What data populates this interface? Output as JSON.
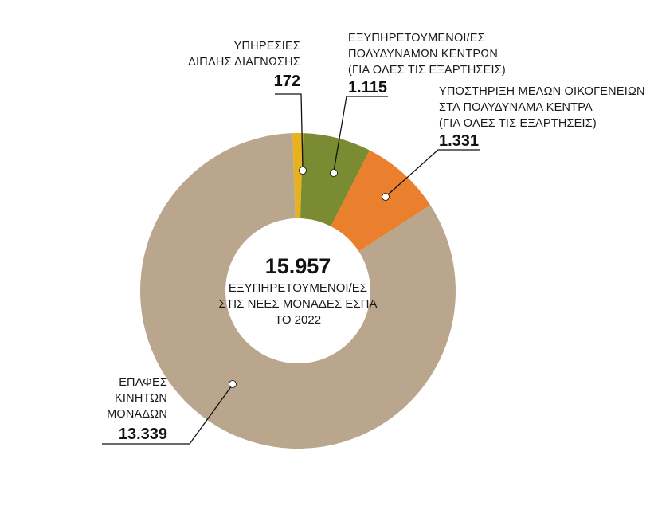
{
  "chart_data": {
    "type": "pie",
    "variant": "donut",
    "start_angle_deg": -2,
    "center": {
      "value": "15.957",
      "lines": [
        "ΕΞΥΠΗΡΕΤΟΥΜΕΝΟΙ/ΕΣ",
        "ΣΤΙΣ ΝΕΕΣ ΜΟΝΑΔΕΣ ΕΣΠΑ",
        "ΤΟ 2022"
      ]
    },
    "slices": [
      {
        "id": "dual-diagnosis",
        "label_lines": [
          "ΥΠΗΡΕΣΙΕΣ",
          "ΔΙΠΛΗΣ ΔΙΑΓΝΩΣΗΣ"
        ],
        "value": 172,
        "value_label": "172",
        "color": "#e8b21f"
      },
      {
        "id": "multi-centers",
        "label_lines": [
          "ΕΞΥΠΗΡΕΤΟΥΜΕΝΟΙ/ΕΣ",
          "ΠΟΛΥΔΥΝΑΜΩΝ ΚΕΝΤΡΩΝ",
          "(ΓΙΑ ΟΛΕΣ ΤΙΣ ΕΞΑΡΤΗΣΕΙΣ)"
        ],
        "value": 1115,
        "value_label": "1.115",
        "color": "#7a8b32"
      },
      {
        "id": "family-support",
        "label_lines": [
          "ΥΠΟΣΤΗΡΙΞΗ ΜΕΛΩΝ ΟΙΚΟΓΕΝΕΙΩΝ",
          "ΣΤΑ ΠΟΛΥΔΥΝΑΜΑ ΚΕΝΤΡΑ",
          "(ΓΙΑ ΟΛΕΣ ΤΙΣ ΕΞΑΡΤΗΣΕΙΣ)"
        ],
        "value": 1331,
        "value_label": "1.331",
        "color": "#ea7f2e"
      },
      {
        "id": "mobile-units",
        "label_lines": [
          "ΕΠΑΦΕΣ",
          "ΚΙΝΗΤΩΝ",
          "ΜΟΝΑΔΩΝ"
        ],
        "value": 13339,
        "value_label": "13.339",
        "color": "#b9a68c"
      }
    ]
  }
}
